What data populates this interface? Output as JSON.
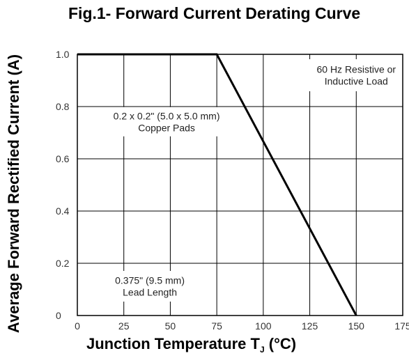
{
  "title": "Fig.1- Forward Current Derating Curve",
  "chart_data": {
    "type": "line",
    "title": "Fig.1- Forward Current Derating Curve",
    "xlabel_main": "Junction Temperature T",
    "xlabel_sub": "J",
    "xlabel_unit": " (°C)",
    "ylabel": "Average Forward Rectified Current (A)",
    "xlim": [
      0,
      175
    ],
    "ylim": [
      0,
      1.0
    ],
    "x_ticks": [
      "0",
      "25",
      "50",
      "75",
      "100",
      "125",
      "150",
      "175"
    ],
    "x_tick_values": [
      0,
      25,
      50,
      75,
      100,
      125,
      150,
      175
    ],
    "y_ticks": [
      "0",
      "0.2",
      "0.4",
      "0.6",
      "0.8",
      "1.0"
    ],
    "y_tick_values": [
      0,
      0.2,
      0.4,
      0.6,
      0.8,
      1.0
    ],
    "grid": true,
    "series": [
      {
        "x": [
          0,
          75,
          150
        ],
        "y": [
          1.0,
          1.0,
          0
        ]
      }
    ],
    "annotations": [
      {
        "lines": [
          "60 Hz Resistive or",
          "Inductive Load"
        ]
      },
      {
        "lines": [
          "0.2 x 0.2\" (5.0 x 5.0 mm)",
          "Copper Pads"
        ]
      },
      {
        "lines": [
          "0.375\" (9.5 mm)",
          "Lead Length"
        ]
      }
    ]
  }
}
